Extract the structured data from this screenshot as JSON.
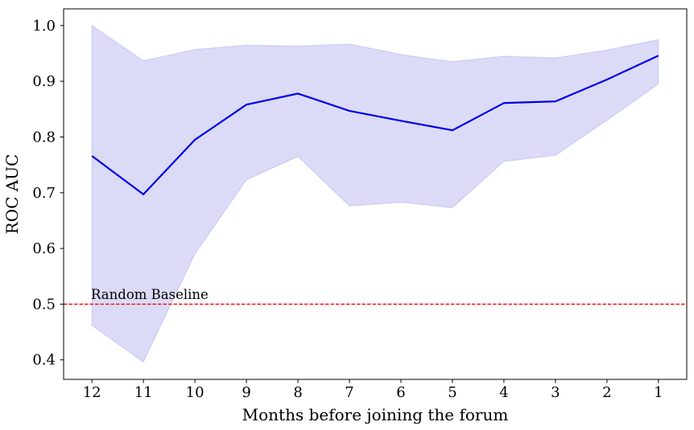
{
  "figure": {
    "background_color": "#ffffff",
    "spine_color": "#000000"
  },
  "chart_data": {
    "type": "line",
    "title": "",
    "xlabel": "Months before joining the forum",
    "ylabel": "ROC AUC",
    "x_reversed": true,
    "grid": false,
    "legend_position": "none",
    "categories": [
      12,
      11,
      10,
      9,
      8,
      7,
      6,
      5,
      4,
      3,
      2,
      1
    ],
    "xtick_labels": [
      "12",
      "11",
      "10",
      "9",
      "8",
      "7",
      "6",
      "5",
      "4",
      "3",
      "2",
      "1"
    ],
    "yticks": [
      0.4,
      0.5,
      0.6,
      0.7,
      0.8,
      0.9,
      1.0
    ],
    "ytick_labels": [
      "0.4",
      "0.5",
      "0.6",
      "0.7",
      "0.8",
      "0.9",
      "1.0"
    ],
    "xlim": [
      12.55,
      0.45
    ],
    "ylim": [
      0.365,
      1.03
    ],
    "series": [
      {
        "name": "mean ROC AUC",
        "values": [
          0.766,
          0.697,
          0.795,
          0.858,
          0.878,
          0.847,
          0.829,
          0.812,
          0.861,
          0.864,
          0.903,
          0.946
        ],
        "color": "#0000e6",
        "line_width": 2.2
      }
    ],
    "band": {
      "name": "confidence band",
      "upper": [
        1.0,
        0.937,
        0.957,
        0.965,
        0.963,
        0.967,
        0.948,
        0.935,
        0.945,
        0.942,
        0.956,
        0.975
      ],
      "lower": [
        0.462,
        0.396,
        0.59,
        0.723,
        0.765,
        0.676,
        0.683,
        0.673,
        0.756,
        0.767,
        0.83,
        0.895
      ],
      "fill_color": "rgba(0,0,204,0.14)",
      "edge_color": "rgba(0,0,204,0.12)"
    },
    "baseline": {
      "value": 0.5,
      "label": "Random Baseline",
      "color": "#ff0000",
      "style": "dashed"
    }
  }
}
